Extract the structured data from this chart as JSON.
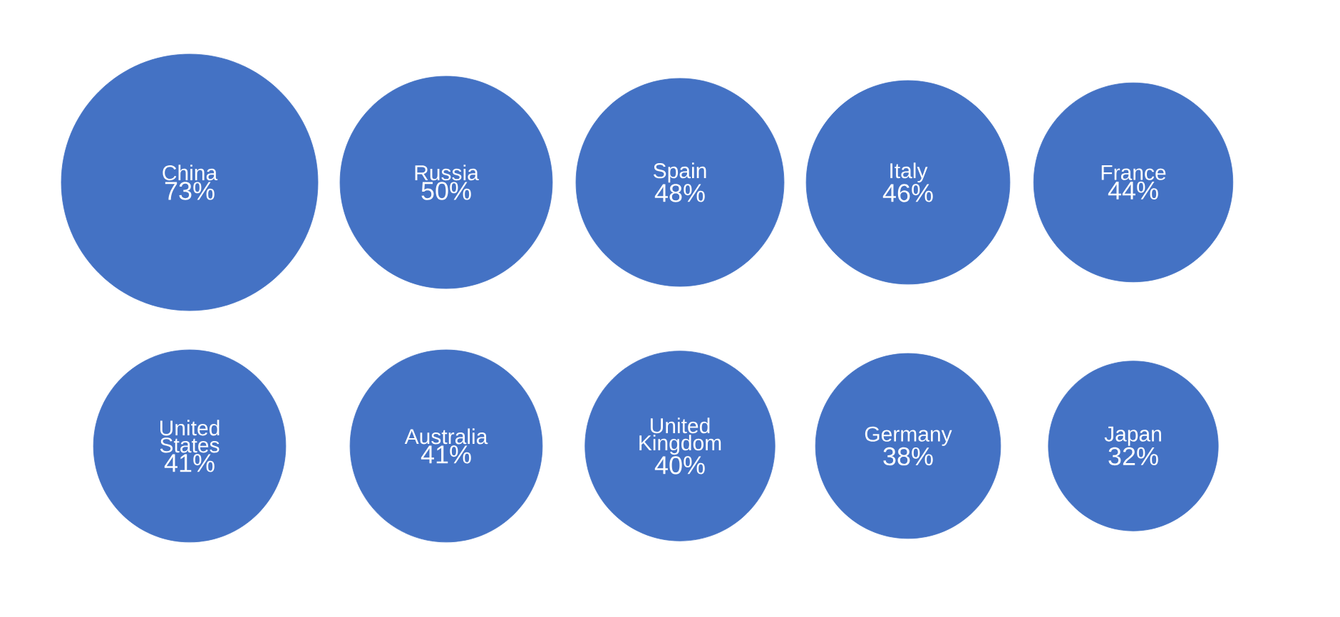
{
  "chart_data": {
    "type": "other",
    "categories": [
      "China",
      "Russia",
      "Spain",
      "Italy",
      "France",
      "United States",
      "Australia",
      "United Kingdom",
      "Germany",
      "Japan"
    ],
    "values": [
      73,
      50,
      48,
      46,
      44,
      41,
      41,
      40,
      38,
      32
    ],
    "value_labels": [
      "73%",
      "50%",
      "48%",
      "46%",
      "44%",
      "41%",
      "41%",
      "40%",
      "38%",
      "32%"
    ],
    "color": "#4472c4"
  }
}
